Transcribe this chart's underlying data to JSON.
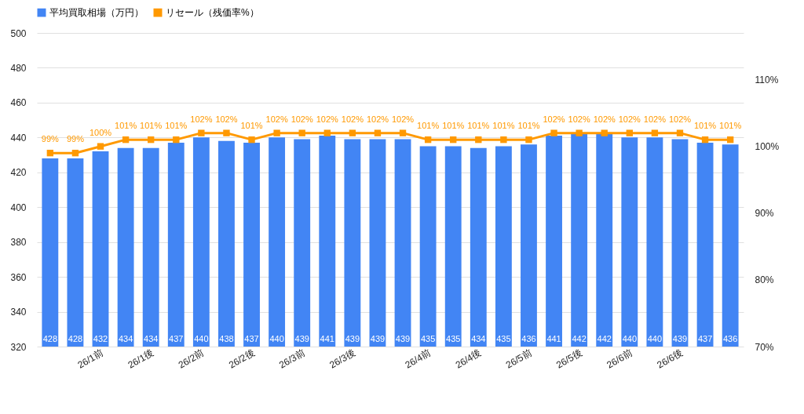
{
  "chart_data": {
    "type": "bar",
    "categories": [
      null,
      null,
      "26/1前",
      null,
      "26/1後",
      null,
      "26/2前",
      null,
      "26/2後",
      null,
      "26/3前",
      null,
      "26/3後",
      null,
      null,
      "26/4前",
      null,
      "26/4後",
      null,
      "26/5前",
      null,
      "26/5後",
      null,
      "26/6前",
      null,
      "26/6後",
      null,
      null
    ],
    "series": [
      {
        "name": "平均買取相場（万円）",
        "color": "#4285f4",
        "values": [
          428,
          428,
          432,
          434,
          434,
          437,
          440,
          438,
          437,
          440,
          439,
          441,
          439,
          439,
          439,
          435,
          435,
          434,
          435,
          436,
          441,
          442,
          442,
          440,
          440,
          439,
          437,
          436
        ],
        "value_labels": [
          "428",
          "428",
          "432",
          "434",
          "434",
          "437",
          "440",
          "438",
          "437",
          "440",
          "439",
          "441",
          "439",
          "439",
          "439",
          "435",
          "435",
          "434",
          "435",
          "436",
          "441",
          "442",
          "442",
          "440",
          "440",
          "439",
          "437",
          "436"
        ]
      },
      {
        "name": "リセール（残価率%）",
        "type": "line",
        "axis": "y2",
        "color": "#ff9900",
        "values": [
          99,
          99,
          100,
          101,
          101,
          101,
          102,
          102,
          101,
          102,
          102,
          102,
          102,
          102,
          102,
          101,
          101,
          101,
          101,
          101,
          102,
          102,
          102,
          102,
          102,
          102,
          101,
          101
        ],
        "value_labels": [
          "99%",
          "99%",
          "100%",
          "101%",
          "101%",
          "101%",
          "102%",
          "102%",
          "101%",
          "102%",
          "102%",
          "102%",
          "102%",
          "102%",
          "102%",
          "101%",
          "101%",
          "101%",
          "101%",
          "101%",
          "102%",
          "102%",
          "102%",
          "102%",
          "102%",
          "102%",
          "101%",
          "101%"
        ]
      }
    ],
    "ylim": [
      320,
      500
    ],
    "yticks": [
      320,
      340,
      360,
      380,
      400,
      420,
      440,
      460,
      480,
      500
    ],
    "y2lim": [
      70,
      117
    ],
    "y2ticks": [
      {
        "value": 70,
        "label": "70%"
      },
      {
        "value": 80,
        "label": "80%"
      },
      {
        "value": 90,
        "label": "90%"
      },
      {
        "value": 100,
        "label": "100%"
      },
      {
        "value": 110,
        "label": "110%"
      }
    ],
    "grid": "y",
    "legend": "top",
    "marker": "square"
  }
}
